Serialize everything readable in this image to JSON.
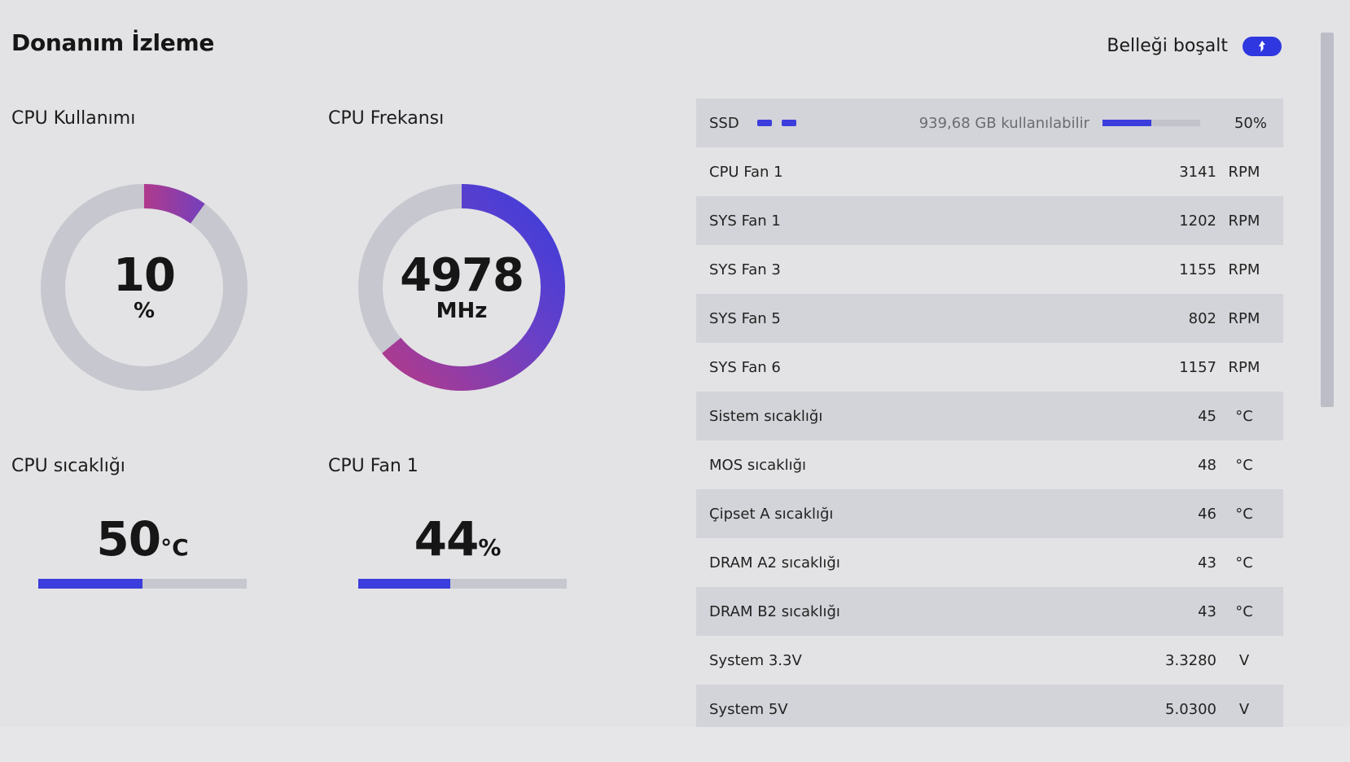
{
  "page": {
    "title": "Donanım İzleme"
  },
  "free_memory": {
    "label": "Belleği boşalt",
    "icon": "rocket-icon",
    "toggle_color": "#2f38e0"
  },
  "widgets": {
    "cpu_usage": {
      "label": "CPU Kullanımı",
      "value": "10",
      "unit": "%",
      "fraction": 0.1
    },
    "cpu_frequency": {
      "label": "CPU Frekansı",
      "value": "4978",
      "unit": "MHz",
      "fraction": 0.64
    },
    "cpu_temperature": {
      "label": "CPU sıcaklığı",
      "value": "50",
      "unit": "°C",
      "fraction": 0.5
    },
    "cpu_fan": {
      "label": "CPU Fan 1",
      "value": "44",
      "unit": "%",
      "fraction": 0.44
    }
  },
  "colors": {
    "accent": "#3b3ddc",
    "gradient_start": "#b03a8c",
    "gradient_end": "#3b3ddc",
    "track": "#c6c7cf"
  },
  "ssd": {
    "name": "SSD",
    "free_text": "939,68 GB kullanılabilir",
    "percent": "50%",
    "fraction": 0.5
  },
  "sensors": [
    {
      "name": "CPU Fan 1",
      "value": "3141",
      "unit": "RPM"
    },
    {
      "name": "SYS Fan 1",
      "value": "1202",
      "unit": "RPM"
    },
    {
      "name": "SYS Fan 3",
      "value": "1155",
      "unit": "RPM"
    },
    {
      "name": "SYS Fan 5",
      "value": "802",
      "unit": "RPM"
    },
    {
      "name": "SYS Fan 6",
      "value": "1157",
      "unit": "RPM"
    },
    {
      "name": "Sistem sıcaklığı",
      "value": "45",
      "unit": "°C"
    },
    {
      "name": "MOS sıcaklığı",
      "value": "48",
      "unit": "°C"
    },
    {
      "name": "Çipset A sıcaklığı",
      "value": "46",
      "unit": "°C"
    },
    {
      "name": "DRAM A2 sıcaklığı",
      "value": "43",
      "unit": "°C"
    },
    {
      "name": "DRAM B2 sıcaklığı",
      "value": "43",
      "unit": "°C"
    },
    {
      "name": "System 3.3V",
      "value": "3.3280",
      "unit": "V"
    },
    {
      "name": "System 5V",
      "value": "5.0300",
      "unit": "V"
    }
  ]
}
